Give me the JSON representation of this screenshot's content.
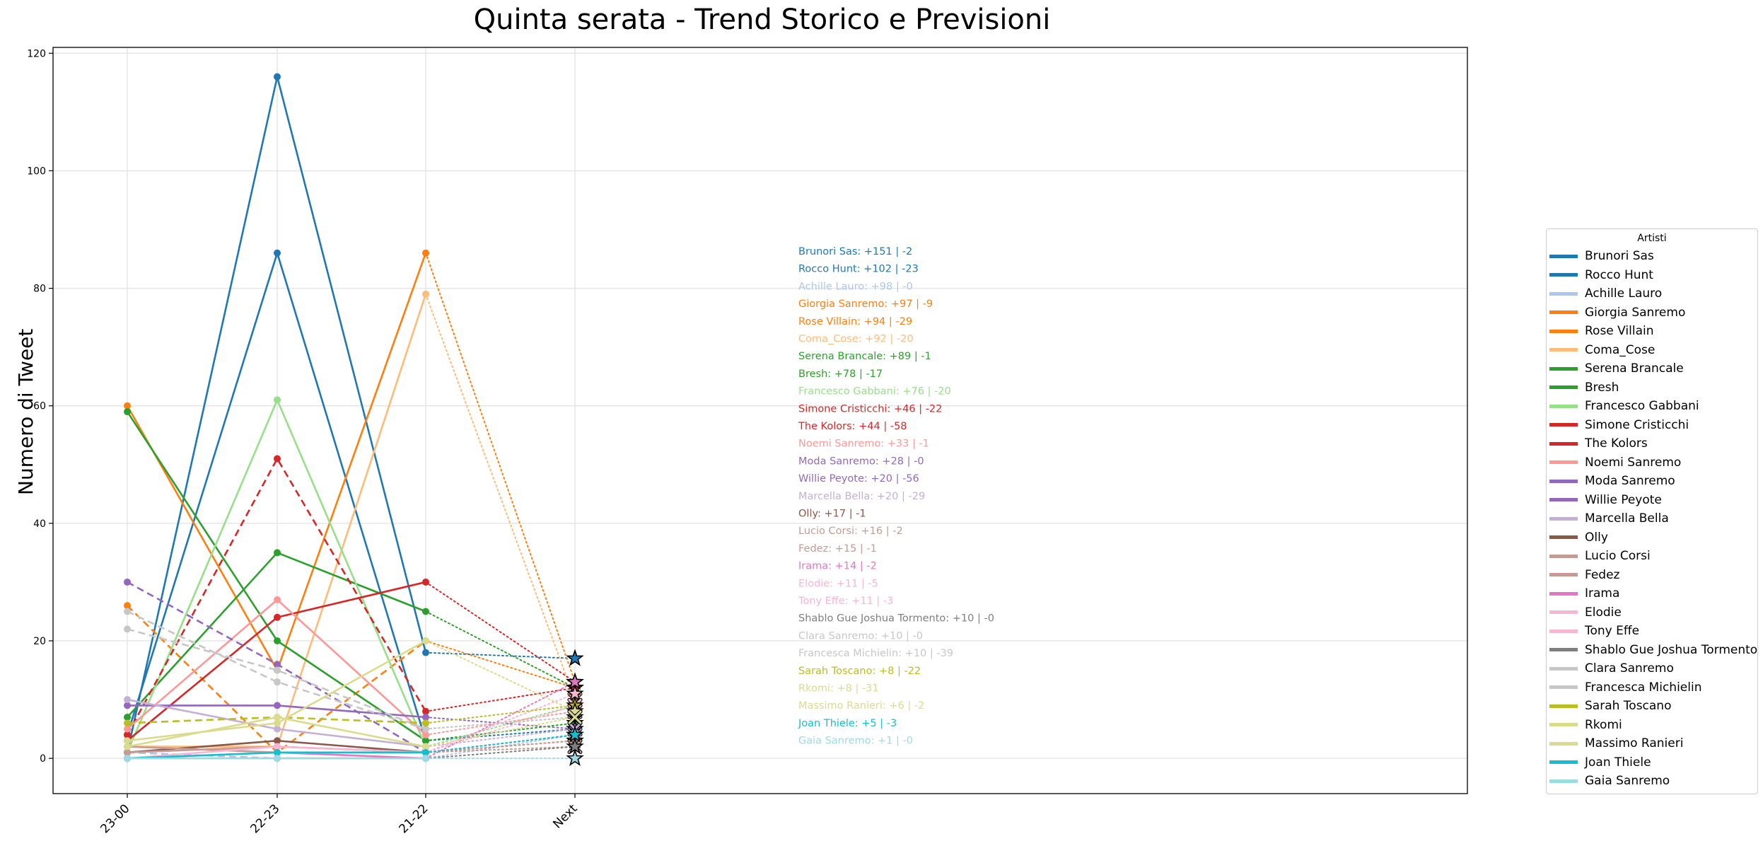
{
  "chart_data": {
    "type": "line",
    "title": "Quinta serata - Trend Storico e Previsioni",
    "xlabel": "",
    "ylabel": "Numero di Tweet",
    "categories": [
      "23-00",
      "22-23",
      "21-22",
      "Next"
    ],
    "ylim": [
      -6,
      121
    ],
    "yticks": [
      0,
      20,
      40,
      60,
      80,
      100,
      120
    ],
    "grid": true,
    "legend_title": "Artisti",
    "legend_placement": "right",
    "series": [
      {
        "name": "Brunori Sas",
        "color": "#1f77b4",
        "dash": "solid",
        "values": [
          1,
          116,
          18,
          17
        ],
        "annotation": "Brunori Sas: +151 | -2"
      },
      {
        "name": "Rocco Hunt",
        "color": "#1f77b4",
        "dash": "solid",
        "values": [
          4,
          86,
          3,
          5
        ],
        "annotation": "Rocco Hunt: +102 | -23"
      },
      {
        "name": "Achille Lauro",
        "color": "#aec7e8",
        "dash": "dashed",
        "values": [
          1,
          0,
          0,
          4
        ],
        "annotation": "Achille Lauro: +98 | -0"
      },
      {
        "name": "Giorgia Sanremo",
        "color": "#ff7f0e",
        "dash": "solid",
        "values": [
          60,
          15,
          86,
          13
        ],
        "annotation": "Giorgia Sanremo: +97 | -9"
      },
      {
        "name": "Rose Villain",
        "color": "#ff7f0e",
        "dash": "dashed",
        "values": [
          26,
          1,
          20,
          12
        ],
        "annotation": "Rose Villain: +94 | -29"
      },
      {
        "name": "Coma_Cose",
        "color": "#ffbb78",
        "dash": "solid",
        "values": [
          2,
          2,
          79,
          10
        ],
        "annotation": "Coma_Cose: +92 | -20"
      },
      {
        "name": "Serena Brancale",
        "color": "#2ca02c",
        "dash": "solid",
        "values": [
          59,
          20,
          3,
          6
        ],
        "annotation": "Serena Brancale: +89 | -1"
      },
      {
        "name": "Bresh",
        "color": "#2ca02c",
        "dash": "solid",
        "values": [
          7,
          35,
          25,
          12
        ],
        "annotation": "Bresh: +78 | -17"
      },
      {
        "name": "Francesco Gabbani",
        "color": "#98df8a",
        "dash": "solid",
        "values": [
          1,
          61,
          2,
          9
        ],
        "annotation": "Francesco Gabbani: +76 | -20"
      },
      {
        "name": "Simone Cristicchi",
        "color": "#d62728",
        "dash": "dashed",
        "values": [
          4,
          51,
          8,
          12
        ],
        "annotation": "Simone Cristicchi: +46 | -22"
      },
      {
        "name": "The Kolors",
        "color": "#d62728",
        "dash": "solid",
        "values": [
          3,
          24,
          30,
          13
        ],
        "annotation": "The Kolors: +44 | -58"
      },
      {
        "name": "Noemi Sanremo",
        "color": "#ff9896",
        "dash": "solid",
        "values": [
          5,
          27,
          4,
          8
        ],
        "annotation": "Noemi Sanremo: +33 | -1"
      },
      {
        "name": "Moda Sanremo",
        "color": "#9467bd",
        "dash": "dashed",
        "values": [
          30,
          16,
          1,
          4
        ],
        "annotation": "Moda Sanremo: +28 | -0"
      },
      {
        "name": "Willie Peyote",
        "color": "#9467bd",
        "dash": "solid",
        "values": [
          9,
          9,
          7,
          5
        ],
        "annotation": "Willie Peyote: +20 | -56"
      },
      {
        "name": "Marcella Bella",
        "color": "#c5b0d5",
        "dash": "solid",
        "values": [
          10,
          5,
          2,
          5
        ],
        "annotation": "Marcella Bella: +20 | -29"
      },
      {
        "name": "Olly",
        "color": "#8c564b",
        "dash": "solid",
        "values": [
          1,
          3,
          1,
          3
        ],
        "annotation": "Olly: +17 | -1"
      },
      {
        "name": "Lucio Corsi",
        "color": "#c49c94",
        "dash": "solid",
        "values": [
          1,
          2,
          1,
          3
        ],
        "annotation": "Lucio Corsi: +16 | -2"
      },
      {
        "name": "Fedez",
        "color": "#c49c94",
        "dash": "solid",
        "values": [
          2,
          1,
          1,
          2
        ],
        "annotation": "Fedez: +15 | -1"
      },
      {
        "name": "Irama",
        "color": "#e377c2",
        "dash": "solid",
        "values": [
          0,
          1,
          0,
          13
        ],
        "annotation": "Irama: +14 | -2"
      },
      {
        "name": "Elodie",
        "color": "#f7b6d2",
        "dash": "solid",
        "values": [
          0,
          1,
          1,
          11
        ],
        "annotation": "Elodie: +11 | -5"
      },
      {
        "name": "Tony Effe",
        "color": "#f7b6d2",
        "dash": "solid",
        "values": [
          0,
          2,
          1,
          9
        ],
        "annotation": "Tony Effe: +11 | -3"
      },
      {
        "name": "Shablo Gue Joshua Tormento",
        "color": "#7f7f7f",
        "dash": "solid",
        "values": [
          0,
          0,
          0,
          2
        ],
        "annotation": "Shablo Gue Joshua Tormento: +10 | -0"
      },
      {
        "name": "Clara Sanremo",
        "color": "#c7c7c7",
        "dash": "dashed",
        "values": [
          25,
          13,
          5,
          7
        ],
        "annotation": "Clara Sanremo: +10 | -0"
      },
      {
        "name": "Francesca Michielin",
        "color": "#c7c7c7",
        "dash": "dashed",
        "values": [
          22,
          15,
          5,
          7
        ],
        "annotation": "Francesca Michielin: +10 | -39"
      },
      {
        "name": "Sarah Toscano",
        "color": "#bcbd22",
        "dash": "dashed",
        "values": [
          6,
          7,
          6,
          9
        ],
        "annotation": "Sarah Toscano: +8 | -22"
      },
      {
        "name": "Rkomi",
        "color": "#dbdb8d",
        "dash": "solid",
        "values": [
          3,
          6,
          20,
          8
        ],
        "annotation": "Rkomi: +8 | -31"
      },
      {
        "name": "Massimo Ranieri",
        "color": "#dbdb8d",
        "dash": "solid",
        "values": [
          2,
          7,
          2,
          7
        ],
        "annotation": "Massimo Ranieri: +6 | -2"
      },
      {
        "name": "Joan Thiele",
        "color": "#17becf",
        "dash": "solid",
        "values": [
          0,
          1,
          1,
          4
        ],
        "annotation": "Joan Thiele: +5 | -3"
      },
      {
        "name": "Gaia Sanremo",
        "color": "#9edae5",
        "dash": "solid",
        "values": [
          0,
          0,
          0,
          0
        ],
        "annotation": "Gaia Sanremo: +1 | -0"
      }
    ]
  }
}
